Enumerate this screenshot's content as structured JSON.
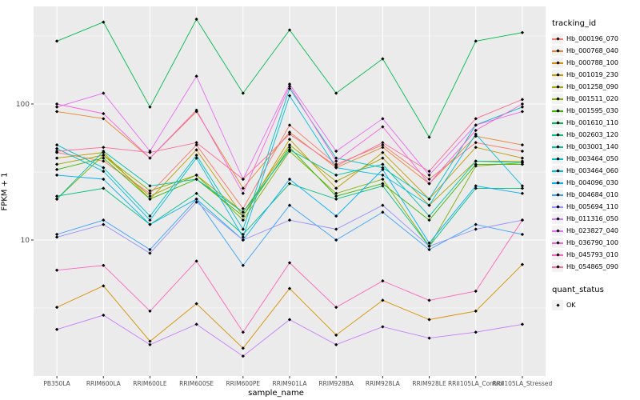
{
  "chart_data": {
    "type": "line",
    "title": "",
    "xlabel": "sample_name",
    "ylabel": "FPKM + 1",
    "y_scale": "log10",
    "y_ticks": [
      10,
      100
    ],
    "y_minor_ticks": [
      3.162,
      31.62,
      316.2
    ],
    "ylim": [
      1.0,
      520
    ],
    "grid": true,
    "legend_position": "right",
    "background": "#EBEBEB",
    "grid_color": "#FFFFFF",
    "tick_label_color": "#4D4D4D",
    "point_color": "#000000",
    "categories": [
      "PB350LA",
      "RRIM600LA",
      "RRIM600LE",
      "RRIM600SE",
      "RRIM600PE",
      "RRIM901LA",
      "RRIM928BA",
      "RRIM928LA",
      "RRIM928LE",
      "RRII105LA_Control",
      "RRII105LA_Stressed"
    ],
    "series": [
      {
        "name": "Hb_000196_070",
        "color": "#F8766D",
        "values": [
          44,
          38,
          22,
          50,
          17,
          70,
          36,
          50,
          28,
          52,
          45
        ]
      },
      {
        "name": "Hb_000768_040",
        "color": "#EA8331",
        "values": [
          88,
          78,
          40,
          88,
          24,
          62,
          34,
          48,
          26,
          58,
          50
        ]
      },
      {
        "name": "Hb_000788_100",
        "color": "#D89000",
        "values": [
          3.2,
          4.6,
          1.8,
          3.4,
          1.6,
          4.4,
          2.0,
          3.6,
          2.6,
          3.0,
          6.6
        ]
      },
      {
        "name": "Hb_001019_230",
        "color": "#C09B00",
        "values": [
          40,
          44,
          20,
          46,
          15,
          55,
          24,
          44,
          20,
          48,
          40
        ]
      },
      {
        "name": "Hb_001258_090",
        "color": "#A3A500",
        "values": [
          36,
          42,
          21,
          30,
          16,
          50,
          27,
          40,
          18,
          38,
          38
        ]
      },
      {
        "name": "Hb_001511_020",
        "color": "#7CAE00",
        "values": [
          20,
          42,
          23,
          30,
          14,
          45,
          22,
          28,
          9,
          35,
          37
        ]
      },
      {
        "name": "Hb_001595_030",
        "color": "#39B600",
        "values": [
          33,
          40,
          20,
          28,
          15,
          48,
          21,
          26,
          14,
          36,
          36
        ]
      },
      {
        "name": "Hb_001610_110",
        "color": "#00BB4E",
        "values": [
          290,
          400,
          95,
          420,
          120,
          350,
          120,
          215,
          57,
          290,
          335
        ]
      },
      {
        "name": "Hb_002603_120",
        "color": "#00BF7D",
        "values": [
          21,
          24,
          13,
          22,
          11,
          26,
          20,
          25,
          9,
          24,
          24
        ]
      },
      {
        "name": "Hb_003001_140",
        "color": "#00C1A3",
        "values": [
          20,
          45,
          25,
          28,
          16,
          46,
          30,
          36,
          15,
          38,
          37
        ]
      },
      {
        "name": "Hb_003464_050",
        "color": "#00BFC4",
        "values": [
          50,
          34,
          15,
          42,
          12,
          130,
          40,
          34,
          20,
          70,
          95
        ]
      },
      {
        "name": "Hb_003464_060",
        "color": "#00BAE0",
        "values": [
          47,
          32,
          14,
          40,
          10.5,
          115,
          34,
          30,
          18,
          60,
          25
        ]
      },
      {
        "name": "Hb_004096_030",
        "color": "#00B0F6",
        "values": [
          30,
          28,
          13,
          20,
          10,
          28,
          15,
          33,
          9.5,
          25,
          22
        ]
      },
      {
        "name": "Hb_004684_010",
        "color": "#35A2FF",
        "values": [
          11,
          14,
          8.5,
          20,
          6.5,
          18,
          10,
          16,
          8.5,
          13,
          11
        ]
      },
      {
        "name": "Hb_005694_110",
        "color": "#9590FF",
        "values": [
          10.5,
          13,
          8,
          19,
          10,
          14,
          12,
          18,
          9,
          12,
          14
        ]
      },
      {
        "name": "Hb_011316_050",
        "color": "#C77CFF",
        "values": [
          2.2,
          2.8,
          1.7,
          2.4,
          1.4,
          2.6,
          1.7,
          2.3,
          1.9,
          2.1,
          2.4
        ]
      },
      {
        "name": "Hb_023827_040",
        "color": "#E76BF3",
        "values": [
          95,
          120,
          45,
          160,
          28,
          140,
          45,
          78,
          30,
          70,
          88
        ]
      },
      {
        "name": "Hb_036790_100",
        "color": "#FA62DB",
        "values": [
          100,
          85,
          40,
          90,
          22,
          135,
          38,
          68,
          26,
          64,
          100
        ]
      },
      {
        "name": "Hb_045793_010",
        "color": "#FF62BC",
        "values": [
          6.0,
          6.5,
          3.0,
          7.0,
          2.1,
          6.8,
          3.2,
          5.0,
          3.6,
          4.2,
          14
        ]
      },
      {
        "name": "Hb_054865_090",
        "color": "#FF6A98",
        "values": [
          45,
          48,
          44,
          52,
          28,
          60,
          35,
          52,
          32,
          78,
          108
        ]
      }
    ],
    "legend": {
      "series_title": "tracking_id",
      "status_title": "quant_status",
      "status_label": "OK"
    }
  }
}
